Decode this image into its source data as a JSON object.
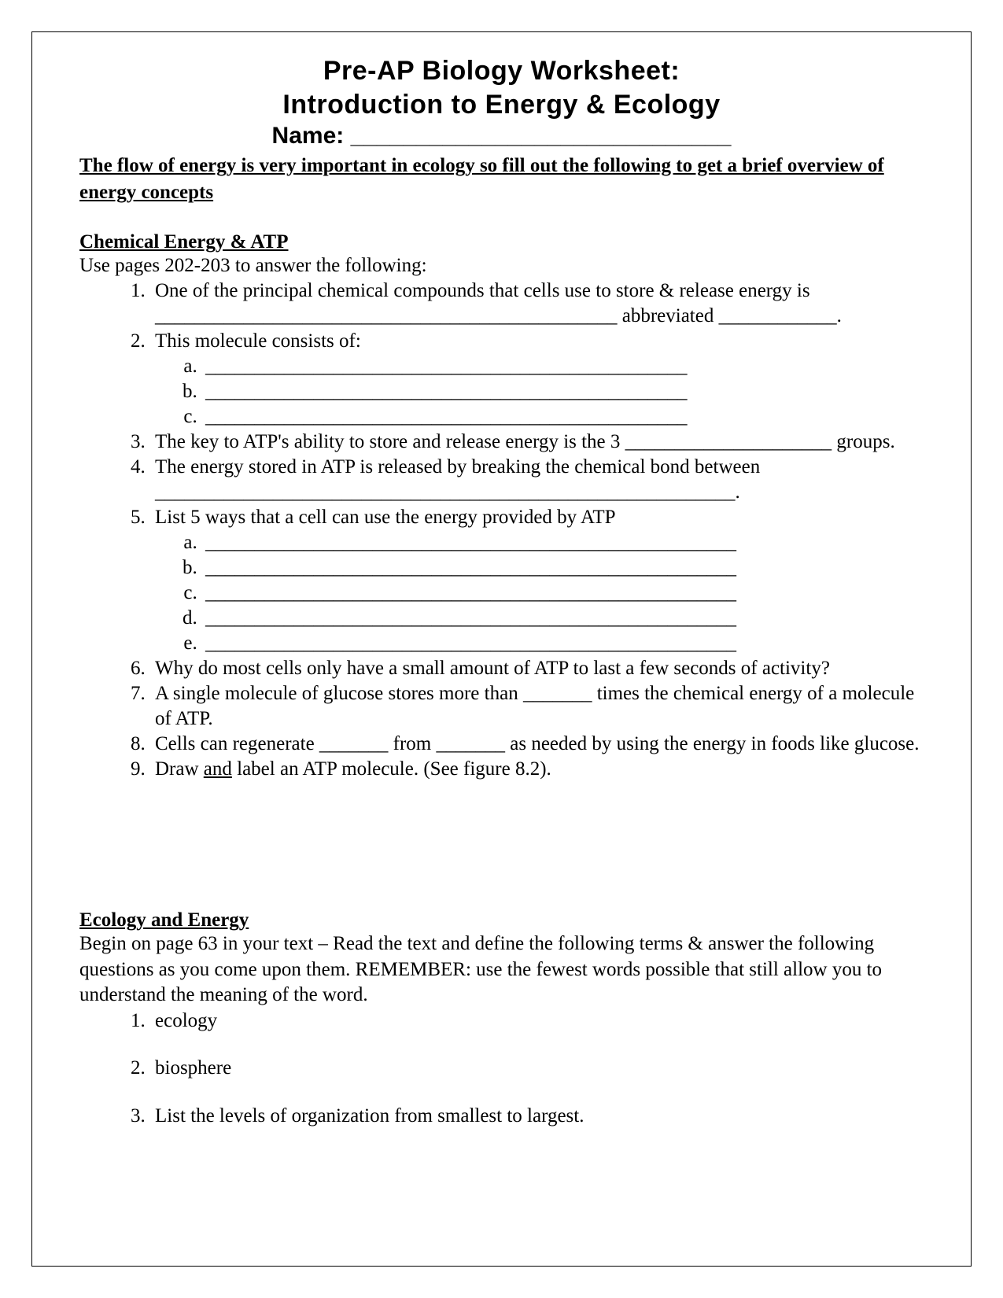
{
  "title_line1": "Pre-AP Biology Worksheet:",
  "title_line2": "Introduction to Energy & Ecology",
  "name_label": "Name: _____________________________",
  "intro": "The flow of energy is very important in ecology so fill out the following to get a brief overview of energy concepts",
  "section1": {
    "heading": "Chemical Energy & ATP",
    "instruction": "Use pages 202-203 to answer the following:",
    "q1": "One of the principal chemical compounds that cells use to store & release energy is _______________________________________________ abbreviated ____________.",
    "q2": "This molecule consists of:",
    "q2a": "_________________________________________________",
    "q2b": "_________________________________________________",
    "q2c": "_________________________________________________",
    "q3": "The key to ATP's ability to store and release energy is the 3 _____________________ groups.",
    "q4": "The energy stored in ATP is released by breaking the chemical bond between ___________________________________________________________.",
    "q5": "List 5 ways that a cell can use the energy provided by ATP",
    "q5a": "______________________________________________________",
    "q5b": "______________________________________________________",
    "q5c": "______________________________________________________",
    "q5d": "______________________________________________________",
    "q5e": "______________________________________________________",
    "q6": "Why do most cells only have a small amount of ATP to last a few seconds of activity?",
    "q7": "A single molecule of glucose stores more than _______ times the chemical energy of a molecule of ATP.",
    "q8": "Cells can regenerate _______ from _______ as needed by using the energy in foods like glucose.",
    "q9_pre": "Draw ",
    "q9_and": "and",
    "q9_post": " label an ATP molecule. (See figure 8.2)."
  },
  "section2": {
    "heading": "Ecology and Energy",
    "instruction": "Begin on page 63 in your text – Read the text and define the following terms & answer the following questions as you come upon them.  REMEMBER:  use the fewest words possible that still allow you to understand the meaning of the word.",
    "q1": "ecology",
    "q2": "biosphere",
    "q3": "List the levels of organization from smallest to largest."
  }
}
